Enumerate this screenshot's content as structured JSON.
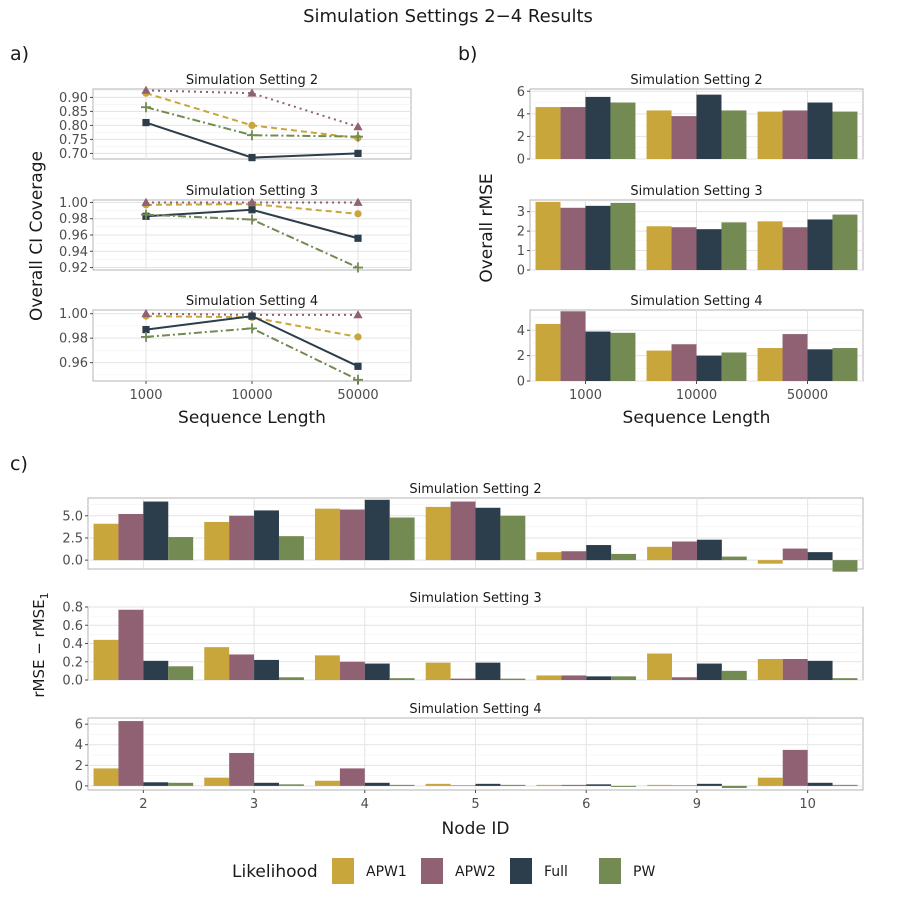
{
  "title": "Simulation Settings 2−4 Results",
  "panel_labels": [
    "a)",
    "b)",
    "c)"
  ],
  "colors": {
    "APW1": "#c9a63b",
    "APW2": "#8f6172",
    "Full": "#2c3e4c",
    "PW": "#738a52"
  },
  "legend": {
    "title": "Likelihood",
    "entries": [
      "APW1",
      "APW2",
      "Full",
      "PW"
    ],
    "position": "bottom"
  },
  "chart_data": [
    {
      "id": "a",
      "type": "line",
      "ylabel": "Overall CI Coverage",
      "xlabel": "Sequence Length",
      "categories": [
        "1000",
        "10000",
        "50000"
      ],
      "facets": [
        {
          "strip": "Simulation Setting 2",
          "ylim": [
            0.68,
            0.93
          ],
          "yticks": [
            "0.90",
            "0.85",
            "0.80",
            "0.75",
            "0.70"
          ],
          "series": [
            {
              "name": "APW1",
              "values": [
                0.915,
                0.8,
                0.755
              ]
            },
            {
              "name": "APW2",
              "values": [
                0.925,
                0.915,
                0.795
              ]
            },
            {
              "name": "Full",
              "values": [
                0.81,
                0.685,
                0.7
              ]
            },
            {
              "name": "PW",
              "values": [
                0.865,
                0.765,
                0.76
              ]
            }
          ]
        },
        {
          "strip": "Simulation Setting 3",
          "ylim": [
            0.917,
            1.003
          ],
          "yticks": [
            "1.00",
            "0.98",
            "0.96",
            "0.94",
            "0.92"
          ],
          "series": [
            {
              "name": "APW1",
              "values": [
                0.997,
                0.998,
                0.986
              ]
            },
            {
              "name": "APW2",
              "values": [
                1.0,
                1.0,
                1.0
              ]
            },
            {
              "name": "Full",
              "values": [
                0.983,
                0.991,
                0.956
              ]
            },
            {
              "name": "PW",
              "values": [
                0.985,
                0.979,
                0.92
              ]
            }
          ]
        },
        {
          "strip": "Simulation Setting 4",
          "ylim": [
            0.945,
            1.003
          ],
          "yticks": [
            "1.00",
            "0.98",
            "0.96"
          ],
          "series": [
            {
              "name": "APW1",
              "values": [
                0.998,
                0.997,
                0.981
              ]
            },
            {
              "name": "APW2",
              "values": [
                1.0,
                0.999,
                0.999
              ]
            },
            {
              "name": "Full",
              "values": [
                0.987,
                0.998,
                0.957
              ]
            },
            {
              "name": "PW",
              "values": [
                0.981,
                0.988,
                0.946
              ]
            }
          ]
        }
      ]
    },
    {
      "id": "b",
      "type": "bar",
      "ylabel": "Overall rMSE",
      "xlabel": "Sequence Length",
      "categories": [
        "1000",
        "10000",
        "50000"
      ],
      "facets": [
        {
          "strip": "Simulation Setting 2",
          "ylim": [
            0,
            6.2
          ],
          "yticks": [
            "6",
            "4",
            "2",
            "0"
          ],
          "series": [
            {
              "name": "APW1",
              "values": [
                4.6,
                4.3,
                4.2
              ]
            },
            {
              "name": "APW2",
              "values": [
                4.6,
                3.8,
                4.3
              ]
            },
            {
              "name": "Full",
              "values": [
                5.5,
                5.7,
                5.0
              ]
            },
            {
              "name": "PW",
              "values": [
                5.0,
                4.3,
                4.2
              ]
            }
          ]
        },
        {
          "strip": "Simulation Setting 3",
          "ylim": [
            0,
            3.6
          ],
          "yticks": [
            "3",
            "2",
            "1",
            "0"
          ],
          "series": [
            {
              "name": "APW1",
              "values": [
                3.5,
                2.25,
                2.5
              ]
            },
            {
              "name": "APW2",
              "values": [
                3.2,
                2.2,
                2.2
              ]
            },
            {
              "name": "Full",
              "values": [
                3.3,
                2.1,
                2.6
              ]
            },
            {
              "name": "PW",
              "values": [
                3.45,
                2.45,
                2.85
              ]
            }
          ]
        },
        {
          "strip": "Simulation Setting 4",
          "ylim": [
            0,
            5.6
          ],
          "yticks": [
            "4",
            "2",
            "0"
          ],
          "series": [
            {
              "name": "APW1",
              "values": [
                4.5,
                2.4,
                2.6
              ]
            },
            {
              "name": "APW2",
              "values": [
                5.5,
                2.9,
                3.7
              ]
            },
            {
              "name": "Full",
              "values": [
                3.9,
                2.0,
                2.5
              ]
            },
            {
              "name": "PW",
              "values": [
                3.8,
                2.25,
                2.6
              ]
            }
          ]
        }
      ]
    },
    {
      "id": "c",
      "type": "bar",
      "ylabel_main": "rMSE − rMSE",
      "ylabel_sub": "1",
      "xlabel": "Node ID",
      "categories": [
        "2",
        "3",
        "4",
        "5",
        "6",
        "9",
        "10"
      ],
      "facets": [
        {
          "strip": "Simulation Setting 2",
          "ylim": [
            -1.0,
            7.0
          ],
          "yticks": [
            "5.0",
            "2.5",
            "0.0"
          ],
          "series": [
            {
              "name": "APW1",
              "values": [
                4.1,
                4.3,
                5.8,
                6.0,
                0.9,
                1.5,
                -0.4
              ]
            },
            {
              "name": "APW2",
              "values": [
                5.2,
                5.0,
                5.7,
                6.6,
                1.0,
                2.1,
                1.3
              ]
            },
            {
              "name": "Full",
              "values": [
                6.6,
                5.6,
                6.8,
                5.9,
                1.7,
                2.3,
                0.9
              ]
            },
            {
              "name": "PW",
              "values": [
                2.6,
                2.7,
                4.8,
                5.0,
                0.7,
                0.4,
                -1.3
              ]
            }
          ]
        },
        {
          "strip": "Simulation Setting 3",
          "ylim": [
            0,
            0.8
          ],
          "yticks": [
            "0.8",
            "0.6",
            "0.4",
            "0.2",
            "0.0"
          ],
          "series": [
            {
              "name": "APW1",
              "values": [
                0.44,
                0.36,
                0.27,
                0.19,
                0.05,
                0.29,
                0.23
              ]
            },
            {
              "name": "APW2",
              "values": [
                0.77,
                0.28,
                0.2,
                0.015,
                0.05,
                0.03,
                0.23
              ]
            },
            {
              "name": "Full",
              "values": [
                0.21,
                0.22,
                0.18,
                0.19,
                0.04,
                0.18,
                0.21
              ]
            },
            {
              "name": "PW",
              "values": [
                0.15,
                0.03,
                0.02,
                0.015,
                0.04,
                0.1,
                0.02
              ]
            }
          ]
        },
        {
          "strip": "Simulation Setting 4",
          "ylim": [
            -0.4,
            6.6
          ],
          "yticks": [
            "6",
            "4",
            "2",
            "0"
          ],
          "series": [
            {
              "name": "APW1",
              "values": [
                1.7,
                0.8,
                0.5,
                0.2,
                0.1,
                0.1,
                0.8
              ]
            },
            {
              "name": "APW2",
              "values": [
                6.3,
                3.2,
                1.7,
                0.05,
                0.1,
                0.05,
                3.5
              ]
            },
            {
              "name": "Full",
              "values": [
                0.35,
                0.3,
                0.3,
                0.2,
                0.15,
                0.2,
                0.3
              ]
            },
            {
              "name": "PW",
              "values": [
                0.3,
                0.15,
                0.1,
                0.1,
                -0.1,
                -0.2,
                0.1
              ]
            }
          ]
        }
      ]
    }
  ]
}
